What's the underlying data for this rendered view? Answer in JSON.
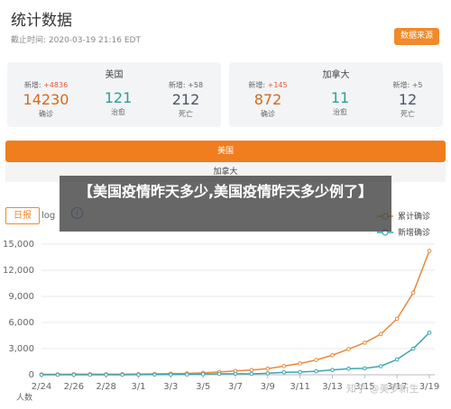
{
  "header": {
    "title": "统计数据",
    "deadline": "截止时间: 2020-03-19 21:16 EDT",
    "source_button": "数据来源"
  },
  "cards": [
    {
      "name": "美国",
      "stats": [
        {
          "delta_prefix": "新增: ",
          "delta": "+4836",
          "value": "14230",
          "label": "确诊",
          "type": "confirmed"
        },
        {
          "delta_prefix": "",
          "delta": "",
          "value": "121",
          "label": "治愈",
          "type": "cured"
        },
        {
          "delta_prefix": "新增: ",
          "delta": "+58",
          "value": "212",
          "label": "死亡",
          "type": "dead"
        }
      ]
    },
    {
      "name": "加拿大",
      "stats": [
        {
          "delta_prefix": "新增: ",
          "delta": "+145",
          "value": "872",
          "label": "确诊",
          "type": "confirmed"
        },
        {
          "delta_prefix": "",
          "delta": "",
          "value": "11",
          "label": "治愈",
          "type": "cured"
        },
        {
          "delta_prefix": "新增: ",
          "delta": "+5",
          "value": "12",
          "label": "死亡",
          "type": "dead"
        }
      ]
    }
  ],
  "tabs": {
    "us": "美国",
    "ca": "加拿大"
  },
  "controls": {
    "daily": "日报",
    "log": "log",
    "info": "i"
  },
  "overlay_text": "【美国疫情昨天多少,美国疫情昨天多少例了】",
  "watermark": "知乎 @美罗新生",
  "colors": {
    "confirmed": "#e8893a",
    "new": "#3aa6b0",
    "accent": "#f07d1e"
  },
  "chart_data": {
    "type": "line",
    "categories": [
      "2/24",
      "2/25",
      "2/26",
      "2/27",
      "2/28",
      "2/29",
      "3/1",
      "3/2",
      "3/3",
      "3/4",
      "3/5",
      "3/6",
      "3/7",
      "3/8",
      "3/9",
      "3/10",
      "3/11",
      "3/12",
      "3/13",
      "3/14",
      "3/15",
      "3/16",
      "3/17",
      "3/18",
      "3/19"
    ],
    "tick_labels": [
      "2/24",
      "2/26",
      "2/28",
      "3/1",
      "3/3",
      "3/5",
      "3/7",
      "3/9",
      "3/11",
      "3/13",
      "3/15",
      "3/17",
      "3/19"
    ],
    "ylabel": "人数",
    "yticks": [
      "0",
      "3,000",
      "6,000",
      "9,000",
      "12,000",
      "15,000"
    ],
    "ylim": [
      0,
      15000
    ],
    "legend_position": "top-right",
    "series": [
      {
        "name": "累计确诊",
        "values": [
          53,
          53,
          59,
          60,
          62,
          68,
          75,
          100,
          124,
          158,
          221,
          319,
          435,
          541,
          704,
          994,
          1301,
          1697,
          2247,
          2943,
          3680,
          4663,
          6421,
          9415,
          14230
        ]
      },
      {
        "name": "新增确诊",
        "values": [
          0,
          0,
          6,
          1,
          2,
          6,
          7,
          25,
          24,
          34,
          63,
          98,
          116,
          106,
          163,
          290,
          307,
          396,
          550,
          696,
          737,
          983,
          1758,
          2994,
          4836
        ]
      }
    ]
  }
}
